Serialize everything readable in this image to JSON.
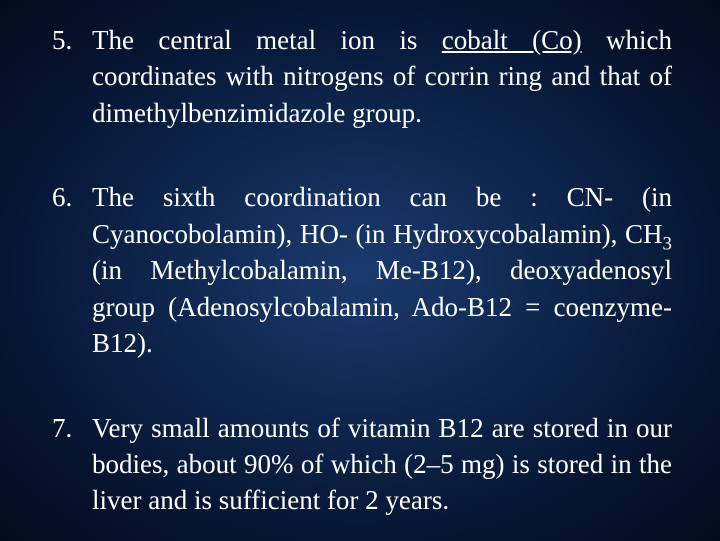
{
  "slide": {
    "background": {
      "gradient_center": "#1a3a6e",
      "gradient_mid1": "#0f2850",
      "gradient_mid2": "#081838",
      "gradient_edge": "#030a1a"
    },
    "text_color": "#ffffff",
    "font_family": "Times New Roman",
    "font_size_pt": 27,
    "items": [
      {
        "number": "5.",
        "text_pre": "The central metal ion is ",
        "underlined": "cobalt (Co)",
        "text_post": " which coordinates with nitrogens of corrin ring and that of dimethylbenzimidazole group."
      },
      {
        "number": "6.",
        "text_pre": "The sixth coordination can be : CN- (in Cyanocobolamin), HO- (in Hydroxycobalamin), CH",
        "sub1": "3",
        "text_mid": " (in Methylcobalamin, Me-B12), deoxyadenosyl group (Adenosylcobalamin, Ado-B12 = coenzyme-B12)."
      },
      {
        "number": "7.",
        "text_pre": "Very small amounts of vitamin B12 are stored in our bodies, about 90% of which (2–5 mg) is stored in the liver and is sufficient for 2 years."
      }
    ]
  }
}
